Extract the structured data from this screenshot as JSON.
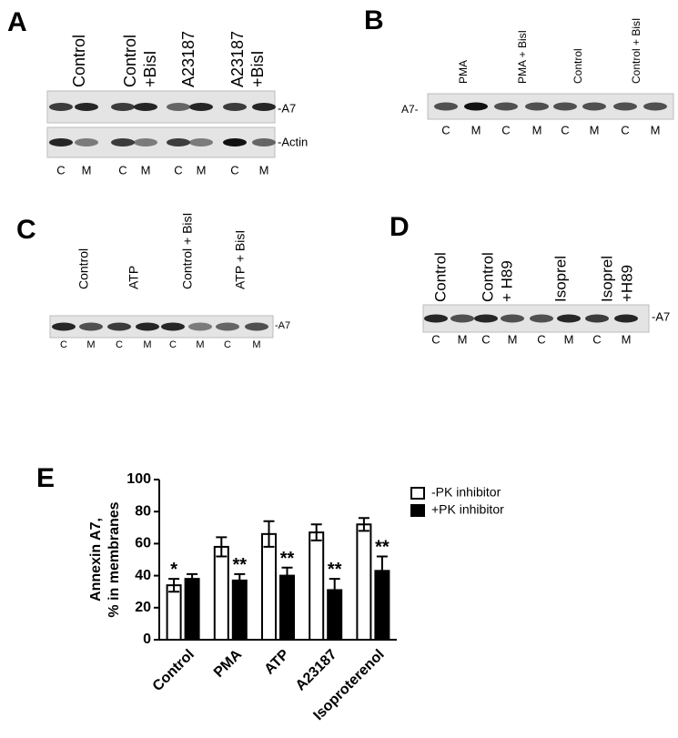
{
  "blots": [
    {
      "panel": "A",
      "lane_labels": [
        [
          "Control"
        ],
        [
          "Control",
          "+BisI"
        ],
        [
          "A23187"
        ],
        [
          "A23187",
          "+BisI"
        ]
      ],
      "band_labels": [
        "-A7",
        "-Actin"
      ],
      "lanes": [
        "C",
        "M",
        "C",
        "M",
        "C",
        "M",
        "C",
        "M"
      ]
    },
    {
      "panel": "B",
      "lane_labels": [
        [
          "PMA"
        ],
        [
          "PMA + BisI"
        ],
        [
          "Control"
        ],
        [
          "Control + BisI"
        ]
      ],
      "band_labels": [
        "A7-"
      ],
      "lanes": [
        "C",
        "M",
        "C",
        "M",
        "C",
        "M",
        "C",
        "M"
      ]
    },
    {
      "panel": "C",
      "lane_labels": [
        [
          "Control"
        ],
        [
          "ATP"
        ],
        [
          "Control + BisI"
        ],
        [
          "ATP + BisI"
        ]
      ],
      "band_labels": [
        "-A7"
      ],
      "lanes": [
        "C",
        "M",
        "C",
        "M",
        "C",
        "M",
        "C",
        "M"
      ]
    },
    {
      "panel": "D",
      "lane_labels": [
        [
          "Control"
        ],
        [
          "Control",
          "+ H89"
        ],
        [
          "Isoprel"
        ],
        [
          "Isoprel",
          "+H89"
        ]
      ],
      "band_labels": [
        "-A7"
      ],
      "lanes": [
        "C",
        "M",
        "C",
        "M",
        "C",
        "M",
        "C",
        "M"
      ]
    }
  ],
  "chart_panel": "E",
  "chart_data": {
    "type": "bar",
    "y_label": [
      "Annexin A7,",
      "% in membranes"
    ],
    "categories": [
      "Control",
      "PMA",
      "ATP",
      "A23187",
      "Isoproterenol"
    ],
    "series": [
      {
        "name": "-PK inhibitor",
        "color": "#ffffff",
        "values": [
          34,
          58,
          66,
          67,
          72
        ],
        "errors": [
          4,
          6,
          8,
          5,
          4
        ],
        "annotations": [
          "*",
          null,
          null,
          null,
          null
        ]
      },
      {
        "name": "+PK inhibitor",
        "color": "#000000",
        "values": [
          38,
          37,
          40,
          31,
          43
        ],
        "errors": [
          3,
          4,
          5,
          7,
          9
        ],
        "annotations": [
          null,
          "**",
          "**",
          "**",
          "**"
        ]
      }
    ],
    "ylim": [
      0,
      100
    ],
    "yticks": [
      0,
      20,
      40,
      60,
      80,
      100
    ],
    "grid": false,
    "legend": "top-right"
  }
}
